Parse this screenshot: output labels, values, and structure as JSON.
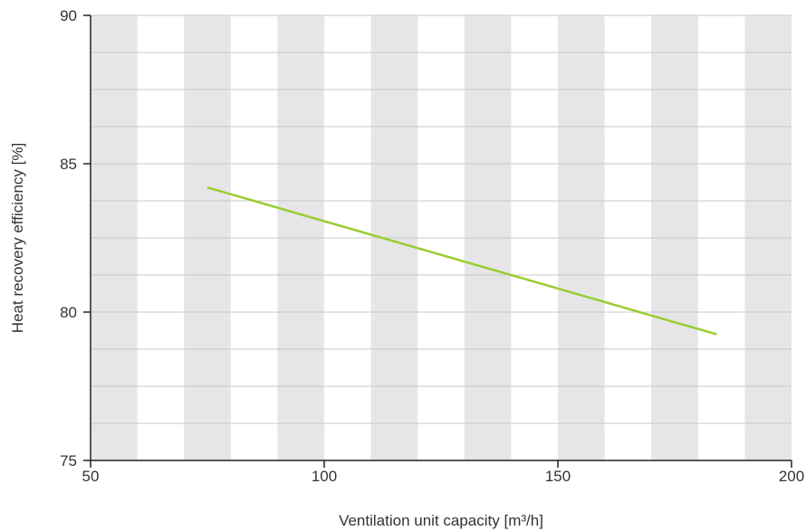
{
  "chart_data": {
    "type": "line",
    "xlabel": "Ventilation unit capacity [m³/h]",
    "ylabel": "Heat recovery efficiency [%]",
    "xlim": [
      50,
      200
    ],
    "ylim": [
      75,
      90
    ],
    "x_ticks": [
      50,
      100,
      150,
      200
    ],
    "y_ticks": [
      75,
      80,
      85,
      90
    ],
    "x_tick_labels": [
      "50",
      "100",
      "150",
      "200"
    ],
    "y_tick_labels": [
      "75",
      "80",
      "85",
      "90"
    ],
    "band_step": 10,
    "minor_y_step": 1.25,
    "grid": true,
    "series": [
      {
        "x": [
          75,
          184
        ],
        "y": [
          84.2,
          79.25
        ]
      }
    ],
    "colors": {
      "line": "#9ACD32",
      "band": "#E6E6E8",
      "grid": "#C8C8C8",
      "axis": "#222222"
    }
  }
}
